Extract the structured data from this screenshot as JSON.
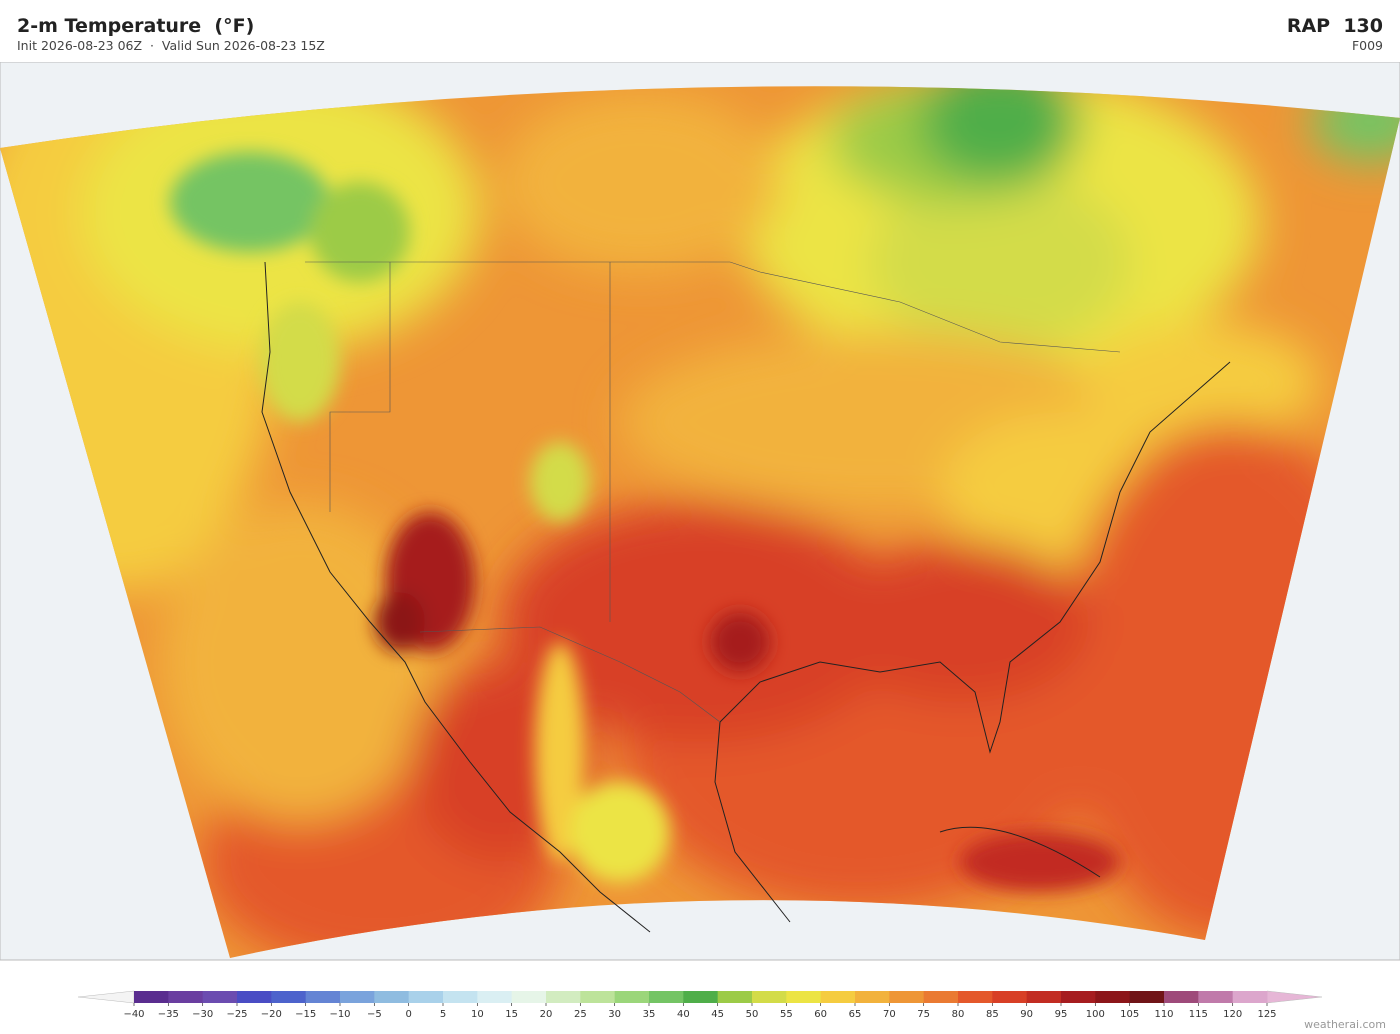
{
  "header": {
    "title": "2-m Temperature  (°F)",
    "subtitle": "Init 2026-08-23 06Z  ·  Valid Sun 2026-08-23 15Z",
    "model": "RAP  130",
    "forecast_hour": "F009"
  },
  "colorbar": {
    "ticks": [
      {
        "value": -40,
        "label": "−40"
      },
      {
        "value": -35,
        "label": "−35"
      },
      {
        "value": -30,
        "label": "−30"
      },
      {
        "value": -25,
        "label": "−25"
      },
      {
        "value": -20,
        "label": "−20"
      },
      {
        "value": -15,
        "label": "−15"
      },
      {
        "value": -10,
        "label": "−10"
      },
      {
        "value": -5,
        "label": "−5"
      },
      0,
      5,
      10,
      15,
      20,
      25,
      30,
      35,
      40,
      45,
      50,
      55,
      60,
      65,
      70,
      75,
      80,
      85,
      90,
      95,
      100,
      105,
      110,
      115,
      120,
      125
    ],
    "colors": [
      "#5a2d8f",
      "#6a3ea0",
      "#6b4cb0",
      "#4a4dc4",
      "#4d63cc",
      "#6484d4",
      "#7aa3dc",
      "#8fbce0",
      "#a9d1ea",
      "#c4e3f0",
      "#daeff3",
      "#e6f5e8",
      "#d2ecc0",
      "#bde39a",
      "#9bd67a",
      "#74c464",
      "#4fae49",
      "#9ccb47",
      "#d3dc48",
      "#ece444",
      "#f5cc40",
      "#f2b23c",
      "#ee9636",
      "#ea7a32",
      "#e4582b",
      "#d83f26",
      "#c22c22",
      "#a61c1f",
      "#8c1519",
      "#701417",
      "#9e4a7a",
      "#c07aaa",
      "#dca6cc"
    ],
    "under_color": "#f4f4f4",
    "over_color": "#e6b6d6"
  },
  "footer": {
    "credit": "weatherai.com"
  }
}
